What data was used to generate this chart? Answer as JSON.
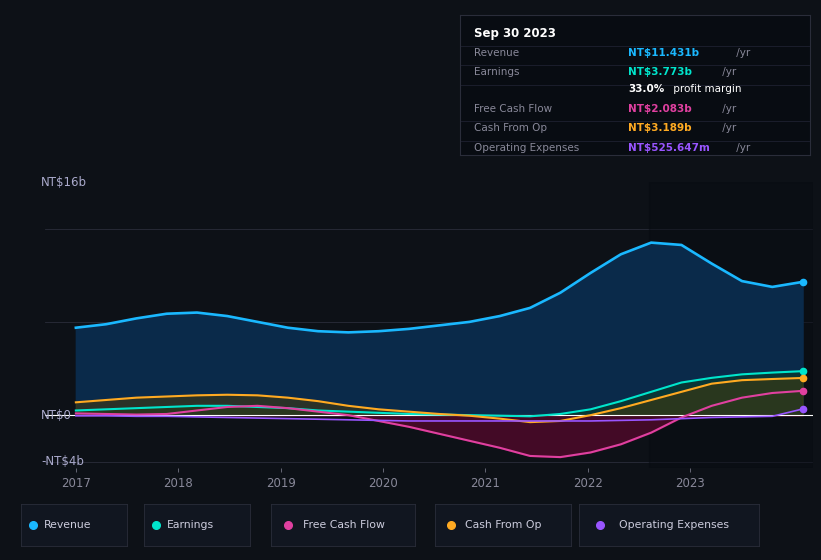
{
  "background_color": "#0d1117",
  "plot_bg_color": "#0d1117",
  "y_label_top": "NT$16b",
  "y_label_zero": "NT$0",
  "y_label_bot": "-NT$4b",
  "ylim": [
    -4.5,
    20
  ],
  "xlim_start": 2016.7,
  "xlim_end": 2024.2,
  "x_ticks": [
    2017,
    2018,
    2019,
    2020,
    2021,
    2022,
    2023
  ],
  "colors": {
    "revenue": "#1ab8ff",
    "earnings": "#00e5cc",
    "free_cash_flow": "#e040a0",
    "cash_from_op": "#ffaa22",
    "operating_expenses": "#9955ff"
  },
  "fill_colors": {
    "revenue": "#0a2a4a",
    "earnings": "#083a2e",
    "free_cash_flow": "#4a0a28",
    "cash_from_op": "#4a3a08",
    "operating_expenses": "#280a4a"
  },
  "revenue": [
    7.5,
    7.8,
    8.3,
    8.7,
    8.8,
    8.5,
    8.0,
    7.5,
    7.2,
    7.1,
    7.2,
    7.4,
    7.7,
    8.0,
    8.5,
    9.2,
    10.5,
    12.2,
    13.8,
    14.8,
    14.6,
    13.0,
    11.5,
    11.0,
    11.431
  ],
  "earnings": [
    0.4,
    0.5,
    0.6,
    0.7,
    0.8,
    0.8,
    0.7,
    0.6,
    0.4,
    0.3,
    0.2,
    0.1,
    0.05,
    0.0,
    -0.05,
    -0.1,
    0.1,
    0.5,
    1.2,
    2.0,
    2.8,
    3.2,
    3.5,
    3.65,
    3.773
  ],
  "free_cash_flow": [
    0.15,
    0.1,
    0.05,
    0.1,
    0.4,
    0.7,
    0.8,
    0.6,
    0.3,
    0.0,
    -0.5,
    -1.0,
    -1.6,
    -2.2,
    -2.8,
    -3.5,
    -3.6,
    -3.2,
    -2.5,
    -1.5,
    -0.2,
    0.8,
    1.5,
    1.9,
    2.083
  ],
  "cash_from_op": [
    1.1,
    1.3,
    1.5,
    1.6,
    1.7,
    1.75,
    1.7,
    1.5,
    1.2,
    0.8,
    0.5,
    0.3,
    0.1,
    -0.05,
    -0.3,
    -0.6,
    -0.5,
    0.0,
    0.6,
    1.3,
    2.0,
    2.7,
    3.0,
    3.1,
    3.189
  ],
  "op_expenses": [
    -0.05,
    -0.05,
    -0.1,
    -0.1,
    -0.15,
    -0.2,
    -0.25,
    -0.3,
    -0.35,
    -0.4,
    -0.45,
    -0.5,
    -0.5,
    -0.5,
    -0.5,
    -0.5,
    -0.5,
    -0.5,
    -0.45,
    -0.4,
    -0.3,
    -0.2,
    -0.15,
    -0.1,
    0.526
  ],
  "info_box": {
    "title": "Sep 30 2023",
    "revenue_val": "NT$11.431b",
    "earnings_val": "NT$3.773b",
    "margin_pct": "33.0%",
    "fcf_val": "NT$2.083b",
    "cfop_val": "NT$3.189b",
    "opex_val": "NT$525.647m"
  },
  "legend": [
    {
      "label": "Revenue",
      "color": "#1ab8ff"
    },
    {
      "label": "Earnings",
      "color": "#00e5cc"
    },
    {
      "label": "Free Cash Flow",
      "color": "#e040a0"
    },
    {
      "label": "Cash From Op",
      "color": "#ffaa22"
    },
    {
      "label": "Operating Expenses",
      "color": "#9955ff"
    }
  ]
}
